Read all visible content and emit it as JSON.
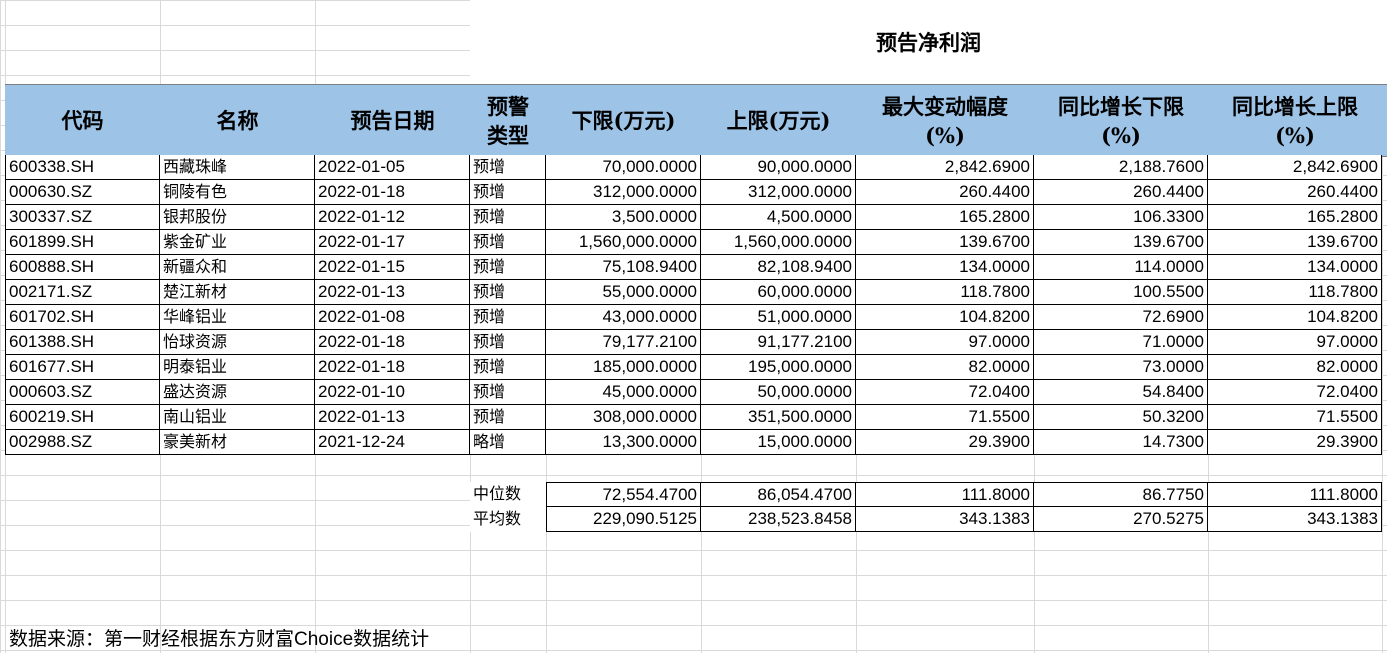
{
  "title": "预告净利润",
  "headers": [
    "代码",
    "名称",
    "预告日期",
    "预警\n类型",
    "下限(万元)",
    "上限(万元)",
    "最大变动幅度\n(%)",
    "同比增长下限\n(%)",
    "同比增长上限\n(%)"
  ],
  "rows": [
    [
      "600338.SH",
      "西藏珠峰",
      "2022-01-05",
      "预增",
      "70,000.0000",
      "90,000.0000",
      "2,842.6900",
      "2,188.7600",
      "2,842.6900"
    ],
    [
      "000630.SZ",
      "铜陵有色",
      "2022-01-18",
      "预增",
      "312,000.0000",
      "312,000.0000",
      "260.4400",
      "260.4400",
      "260.4400"
    ],
    [
      "300337.SZ",
      "银邦股份",
      "2022-01-12",
      "预增",
      "3,500.0000",
      "4,500.0000",
      "165.2800",
      "106.3300",
      "165.2800"
    ],
    [
      "601899.SH",
      "紫金矿业",
      "2022-01-17",
      "预增",
      "1,560,000.0000",
      "1,560,000.0000",
      "139.6700",
      "139.6700",
      "139.6700"
    ],
    [
      "600888.SH",
      "新疆众和",
      "2022-01-15",
      "预增",
      "75,108.9400",
      "82,108.9400",
      "134.0000",
      "114.0000",
      "134.0000"
    ],
    [
      "002171.SZ",
      "楚江新材",
      "2022-01-13",
      "预增",
      "55,000.0000",
      "60,000.0000",
      "118.7800",
      "100.5500",
      "118.7800"
    ],
    [
      "601702.SH",
      "华峰铝业",
      "2022-01-08",
      "预增",
      "43,000.0000",
      "51,000.0000",
      "104.8200",
      "72.6900",
      "104.8200"
    ],
    [
      "601388.SH",
      "怡球资源",
      "2022-01-18",
      "预增",
      "79,177.2100",
      "91,177.2100",
      "97.0000",
      "71.0000",
      "97.0000"
    ],
    [
      "601677.SH",
      "明泰铝业",
      "2022-01-18",
      "预增",
      "185,000.0000",
      "195,000.0000",
      "82.0000",
      "73.0000",
      "82.0000"
    ],
    [
      "000603.SZ",
      "盛达资源",
      "2022-01-10",
      "预增",
      "45,000.0000",
      "50,000.0000",
      "72.0400",
      "54.8400",
      "72.0400"
    ],
    [
      "600219.SH",
      "南山铝业",
      "2022-01-13",
      "预增",
      "308,000.0000",
      "351,500.0000",
      "71.5500",
      "50.3200",
      "71.5500"
    ],
    [
      "002988.SZ",
      "豪美新材",
      "2021-12-24",
      "略增",
      "13,300.0000",
      "15,000.0000",
      "29.3900",
      "14.7300",
      "29.3900"
    ]
  ],
  "stats": [
    {
      "label": "中位数",
      "values": [
        "72,554.4700",
        "86,054.4700",
        "111.8000",
        "86.7750",
        "111.8000"
      ]
    },
    {
      "label": "平均数",
      "values": [
        "229,090.5125",
        "238,523.8458",
        "343.1383",
        "270.5275",
        "343.1383"
      ]
    }
  ],
  "source": {
    "prefix": "数据来源：第一财经根据东方财富",
    "brand": "Choice",
    "suffix": "数据统计"
  },
  "colors": {
    "header_bg": "#9dc3e6",
    "grid": "#d9d9d9",
    "selection": "#f2a64a"
  }
}
